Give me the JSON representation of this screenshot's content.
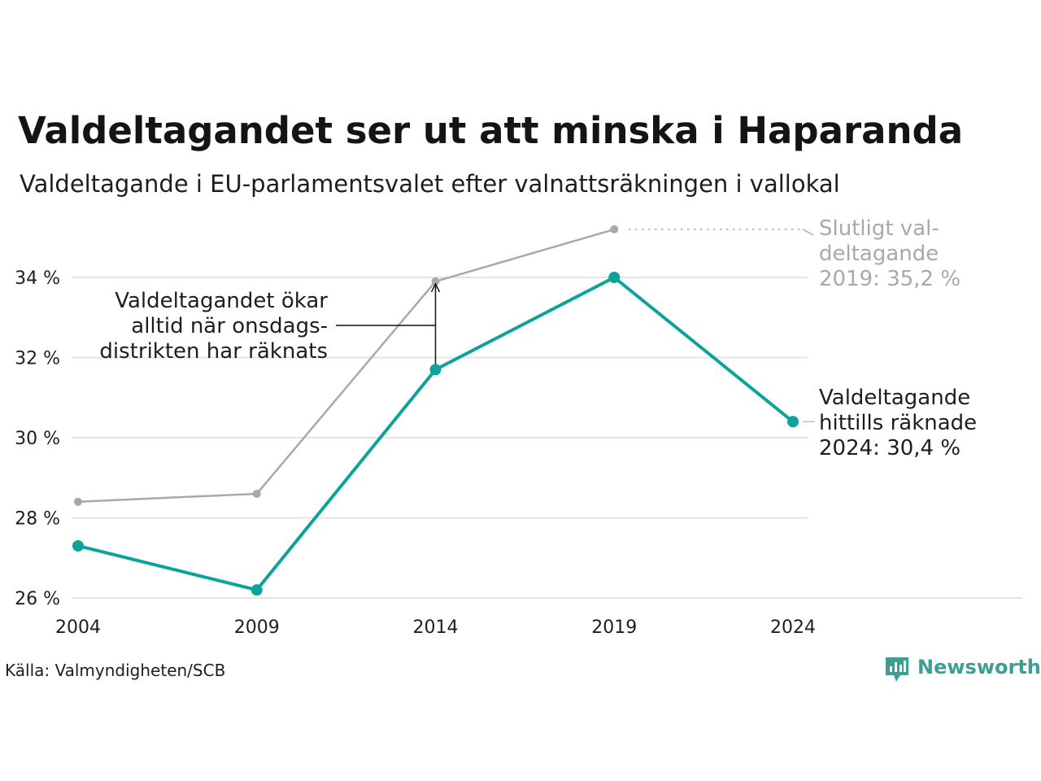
{
  "colors": {
    "current": "#0ea39a",
    "final": "#a9a9a9",
    "grid": "#e4e4e4",
    "text": "#1e1e1e",
    "brand": "#3b9f95"
  },
  "chart_data": {
    "type": "line",
    "title": "Valdeltagandet ser ut att minska i Haparanda",
    "subtitle": "Valdeltagande i EU-parlamentsvalet efter valnattsräkningen i vallokal",
    "x": [
      "2004",
      "2009",
      "2014",
      "2019",
      "2024"
    ],
    "ylim": [
      26,
      34
    ],
    "yticks": [
      26,
      28,
      30,
      32,
      34
    ],
    "ytick_labels": [
      "26 %",
      "28 %",
      "30 %",
      "32 %",
      "34 %"
    ],
    "grid": true,
    "series": [
      {
        "key": "final",
        "values": [
          28.4,
          28.6,
          33.9,
          35.2,
          null
        ]
      },
      {
        "key": "current",
        "values": [
          27.3,
          26.2,
          31.7,
          34.0,
          30.4
        ]
      }
    ],
    "annotations": {
      "final_label": [
        "Slutligt val-",
        "deltagande",
        "2019: 35,2 %"
      ],
      "current_label": [
        "Valdeltagande",
        "hittills räknade",
        "2024: 30,4 %"
      ],
      "gap_label": [
        "Valdeltagandet ökar",
        "alltid när onsdags-",
        "distrikten har räknats"
      ]
    }
  },
  "footer": {
    "source": "Källa: Valmyndigheten/SCB",
    "brand": "Newsworthy"
  }
}
